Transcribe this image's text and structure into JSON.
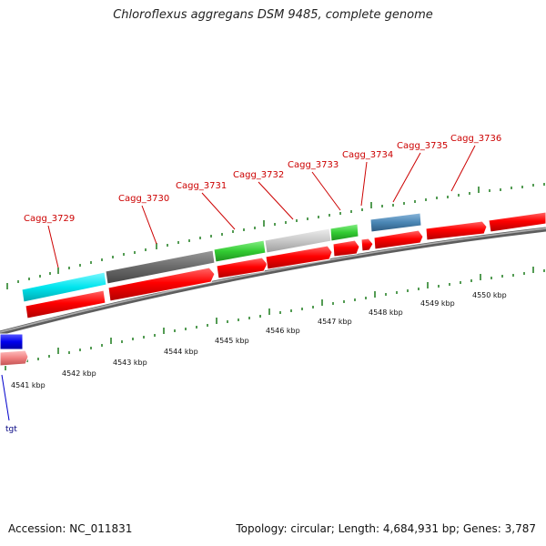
{
  "title": "Chloroflexus aggregans DSM 9485, complete genome",
  "footer": {
    "accession": "Accession: NC_011831",
    "stats": "Topology: circular; Length: 4,684,931 bp; Genes: 3,787"
  },
  "gene_labels": [
    "Cagg_3729",
    "Cagg_3730",
    "Cagg_3731",
    "Cagg_3732",
    "Cagg_3733",
    "Cagg_3734",
    "Cagg_3735",
    "Cagg_3736"
  ],
  "kbp_labels": [
    "4541 kbp",
    "4542 kbp",
    "4543 kbp",
    "4544 kbp",
    "4545 kbp",
    "4546 kbp",
    "4547 kbp",
    "4548 kbp",
    "4549 kbp",
    "4550 kbp"
  ],
  "trna_label": "tgt",
  "colors": {
    "cds": "#ff0000",
    "backbone": "#8a8a8a",
    "tick": "#1a7a1a",
    "label": "#cc0000",
    "cyan": "#00e5ee",
    "darkgray": "#707070",
    "lightgray": "#c8c8c8",
    "green": "#33cc33",
    "steelblue": "#4a86b4",
    "blue": "#0000ee",
    "pink": "#f08080"
  }
}
